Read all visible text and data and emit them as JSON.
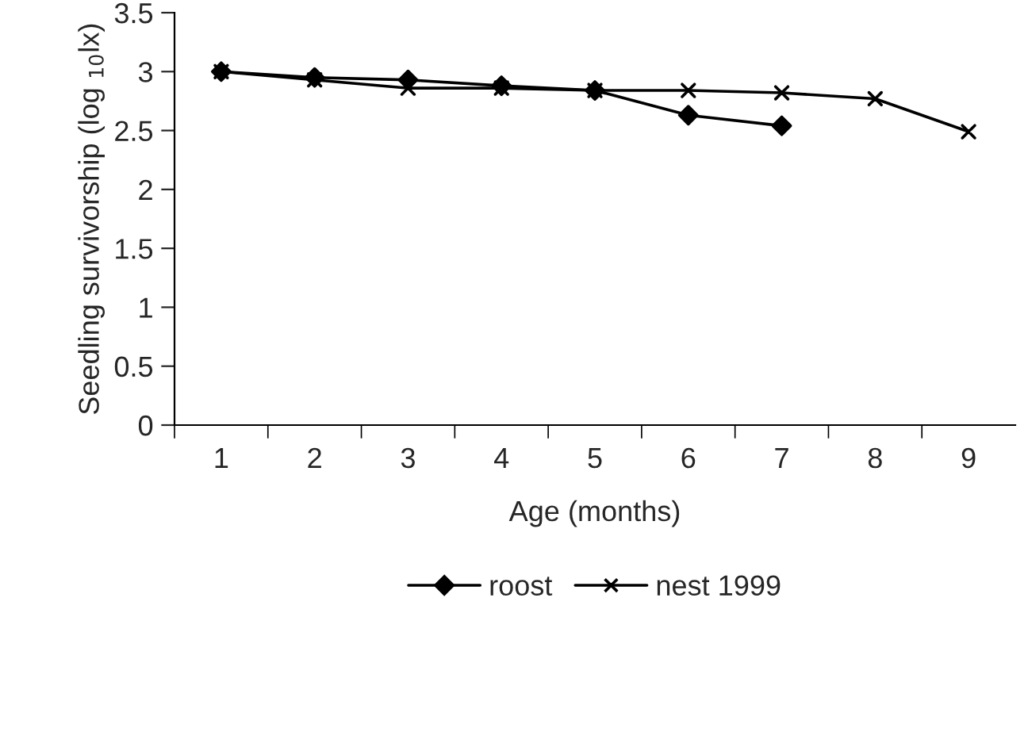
{
  "chart_data": {
    "type": "line",
    "xlabel": "Age (months)",
    "ylabel": "Seedling survivorship (log $_{10}$lx)",
    "categories": [
      "1",
      "2",
      "3",
      "4",
      "5",
      "6",
      "7",
      "8",
      "9"
    ],
    "series": [
      {
        "name": "roost",
        "color": "#000000",
        "marker": "diamond",
        "values": [
          3.0,
          2.95,
          2.93,
          2.88,
          2.84,
          2.63,
          2.54,
          null,
          null
        ]
      },
      {
        "name": "nest 1999",
        "color": "#000000",
        "marker": "cross",
        "values": [
          3.0,
          2.93,
          2.86,
          2.86,
          2.84,
          2.84,
          2.82,
          2.77,
          2.49
        ]
      }
    ],
    "ylim": [
      0,
      3.5
    ],
    "yticks": [
      0,
      0.5,
      1,
      1.5,
      2,
      2.5,
      3,
      3.5
    ],
    "grid": false,
    "legend": "bottom",
    "line_style": "solid"
  }
}
